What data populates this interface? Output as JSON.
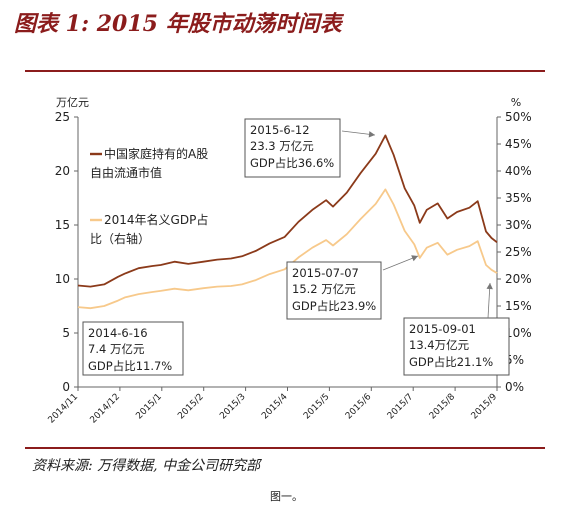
{
  "header": {
    "title": "图表 1: 2015 年股市动荡时间表"
  },
  "footer": {
    "source": "资料来源: 万得数据, 中金公司研究部",
    "caption": "图一。"
  },
  "chart_data": {
    "type": "line",
    "left_unit": "万亿元",
    "right_unit": "%",
    "yticks_left": [
      "25",
      "20",
      "15",
      "10",
      "5",
      "0"
    ],
    "yticks_right": [
      "50%",
      "45%",
      "40%",
      "35%",
      "30%",
      "25%",
      "20%",
      "15%",
      "10%",
      "5%",
      "0%"
    ],
    "x_ticks": [
      "2014/11",
      "2014/12",
      "2015/1",
      "2015/2",
      "2015/3",
      "2015/4",
      "2015/5",
      "2015/6",
      "2015/7",
      "2015/8",
      "2015/9"
    ],
    "ylim_left": [
      0,
      25
    ],
    "ylim_right": [
      0,
      50
    ],
    "legend": [
      {
        "label_line1": "中国家庭持有的A股",
        "label_line2": "自由流通市值",
        "color": "#8b3a1a"
      },
      {
        "label_line1": "2014年名义GDP占",
        "label_line2": "比（右轴）",
        "color": "#f7c98b"
      }
    ],
    "series": [
      {
        "axis": "left",
        "color": "#8b3a1a",
        "points": [
          [
            "2014-11-01",
            9.4
          ],
          [
            "2014-11-10",
            9.3
          ],
          [
            "2014-11-20",
            9.5
          ],
          [
            "2014-11-30",
            10.2
          ],
          [
            "2014-12-05",
            10.5
          ],
          [
            "2014-12-15",
            11.0
          ],
          [
            "2014-12-25",
            11.2
          ],
          [
            "2014-12-31",
            11.3
          ],
          [
            "2015-01-10",
            11.6
          ],
          [
            "2015-01-20",
            11.4
          ],
          [
            "2015-01-31",
            11.6
          ],
          [
            "2015-02-10",
            11.8
          ],
          [
            "2015-02-20",
            11.9
          ],
          [
            "2015-02-28",
            12.1
          ],
          [
            "2015-03-10",
            12.6
          ],
          [
            "2015-03-20",
            13.3
          ],
          [
            "2015-03-31",
            13.9
          ],
          [
            "2015-04-10",
            15.3
          ],
          [
            "2015-04-20",
            16.4
          ],
          [
            "2015-04-30",
            17.3
          ],
          [
            "2015-05-05",
            16.7
          ],
          [
            "2015-05-15",
            18.0
          ],
          [
            "2015-05-25",
            19.8
          ],
          [
            "2015-06-05",
            21.6
          ],
          [
            "2015-06-12",
            23.3
          ],
          [
            "2015-06-18",
            21.5
          ],
          [
            "2015-06-26",
            18.4
          ],
          [
            "2015-07-03",
            16.8
          ],
          [
            "2015-07-07",
            15.2
          ],
          [
            "2015-07-12",
            16.4
          ],
          [
            "2015-07-20",
            17.0
          ],
          [
            "2015-07-27",
            15.6
          ],
          [
            "2015-08-03",
            16.2
          ],
          [
            "2015-08-12",
            16.6
          ],
          [
            "2015-08-18",
            17.2
          ],
          [
            "2015-08-24",
            14.4
          ],
          [
            "2015-08-28",
            13.8
          ],
          [
            "2015-09-01",
            13.4
          ]
        ]
      },
      {
        "axis": "right",
        "color": "#f7c98b",
        "points": [
          [
            "2014-11-01",
            14.8
          ],
          [
            "2014-11-10",
            14.6
          ],
          [
            "2014-11-20",
            15.0
          ],
          [
            "2014-11-30",
            16.0
          ],
          [
            "2014-12-05",
            16.6
          ],
          [
            "2014-12-15",
            17.2
          ],
          [
            "2014-12-25",
            17.6
          ],
          [
            "2014-12-31",
            17.8
          ],
          [
            "2015-01-10",
            18.2
          ],
          [
            "2015-01-20",
            17.9
          ],
          [
            "2015-01-31",
            18.3
          ],
          [
            "2015-02-10",
            18.6
          ],
          [
            "2015-02-20",
            18.7
          ],
          [
            "2015-02-28",
            19.0
          ],
          [
            "2015-03-10",
            19.8
          ],
          [
            "2015-03-20",
            20.9
          ],
          [
            "2015-03-31",
            21.8
          ],
          [
            "2015-04-10",
            24.0
          ],
          [
            "2015-04-20",
            25.8
          ],
          [
            "2015-04-30",
            27.2
          ],
          [
            "2015-05-05",
            26.2
          ],
          [
            "2015-05-15",
            28.3
          ],
          [
            "2015-05-25",
            31.1
          ],
          [
            "2015-06-05",
            33.9
          ],
          [
            "2015-06-12",
            36.6
          ],
          [
            "2015-06-18",
            33.8
          ],
          [
            "2015-06-26",
            28.9
          ],
          [
            "2015-07-03",
            26.4
          ],
          [
            "2015-07-07",
            23.9
          ],
          [
            "2015-07-12",
            25.8
          ],
          [
            "2015-07-20",
            26.7
          ],
          [
            "2015-07-27",
            24.5
          ],
          [
            "2015-08-03",
            25.4
          ],
          [
            "2015-08-12",
            26.1
          ],
          [
            "2015-08-18",
            27.0
          ],
          [
            "2015-08-24",
            22.6
          ],
          [
            "2015-08-28",
            21.7
          ],
          [
            "2015-09-01",
            21.1
          ]
        ]
      }
    ],
    "annotations": [
      {
        "date": "2015-06-12",
        "line1": "2015-6-12",
        "line2": "23.3 万亿元",
        "line3": "GDP占比36.6%"
      },
      {
        "date": "2015-07-07",
        "line1": "2015-07-07",
        "line2": "15.2 万亿元",
        "line3": "GDP占比23.9%"
      },
      {
        "date": "2014-06-16",
        "line1": "2014-6-16",
        "line2": "7.4 万亿元",
        "line3": "GDP占比11.7%"
      },
      {
        "date": "2015-09-01",
        "line1": "2015-09-01",
        "line2": "13.4万亿元",
        "line3": "GDP占比21.1%"
      }
    ]
  }
}
